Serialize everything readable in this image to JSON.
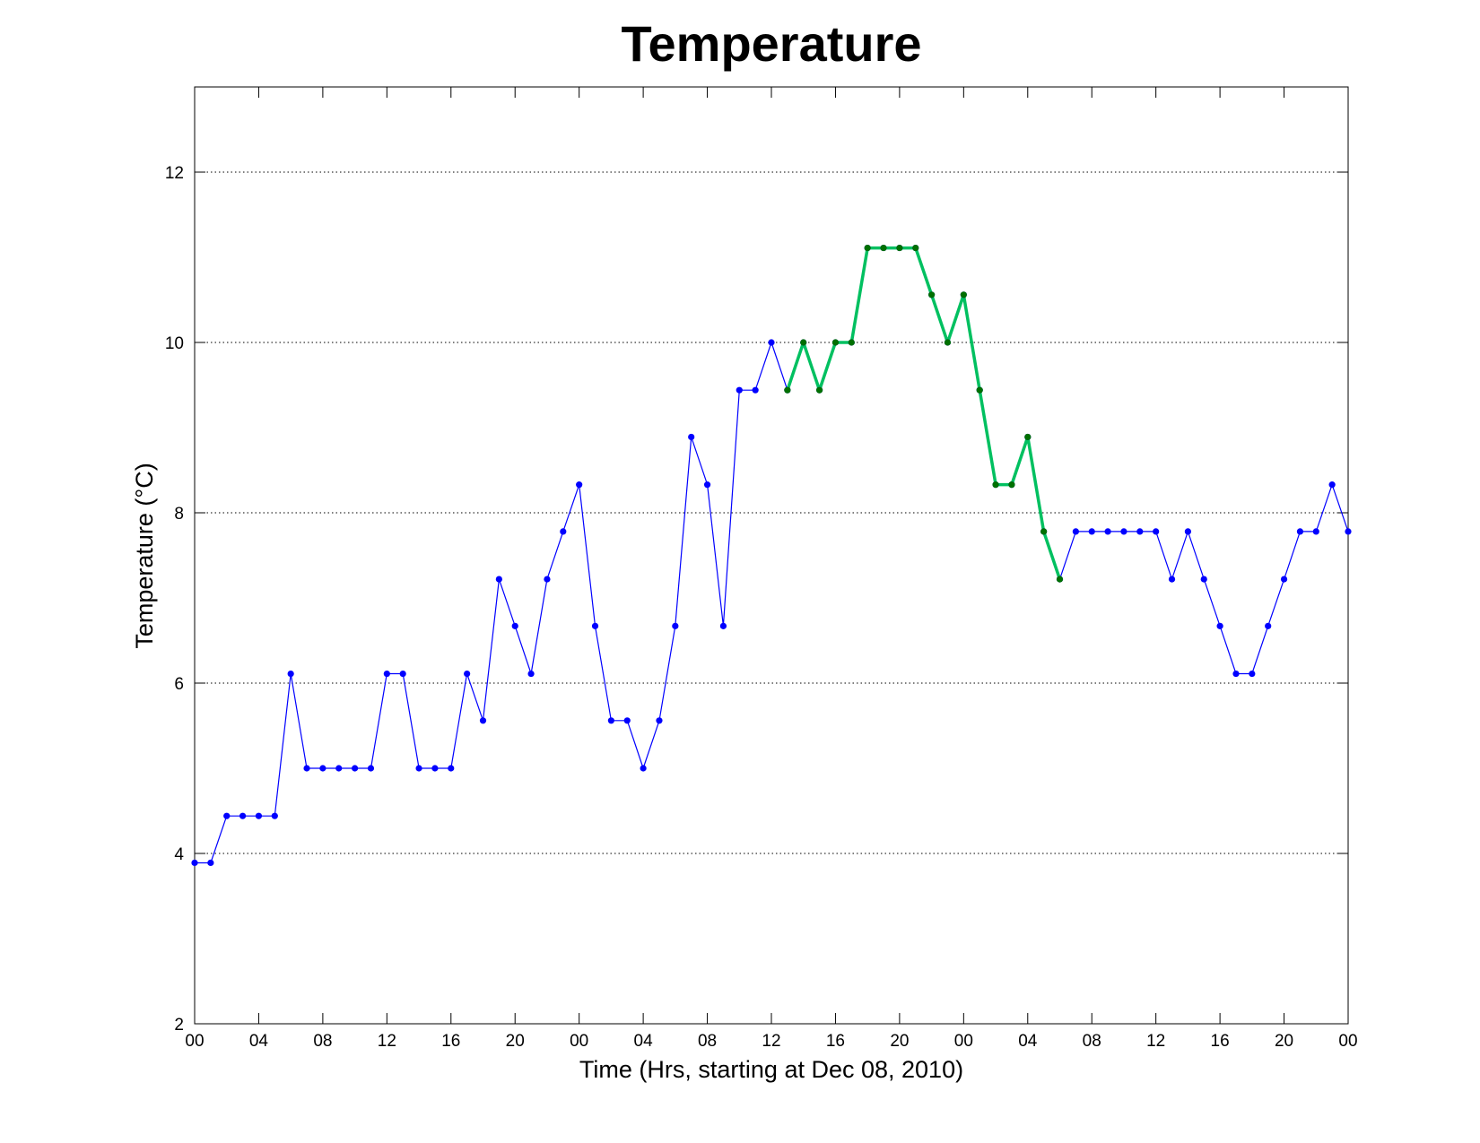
{
  "chart_data": {
    "type": "line",
    "title": "Temperature",
    "xlabel": "Time (Hrs, starting at Dec 08, 2010)",
    "ylabel": "Temperature (°C)",
    "xlim": [
      0,
      72
    ],
    "ylim": [
      2,
      13
    ],
    "grid": "horizontal dotted",
    "y_ticks": [
      2,
      4,
      6,
      8,
      10,
      12
    ],
    "x_ticks": [
      {
        "hour": 0,
        "label": "00"
      },
      {
        "hour": 4,
        "label": "04"
      },
      {
        "hour": 8,
        "label": "08"
      },
      {
        "hour": 12,
        "label": "12"
      },
      {
        "hour": 16,
        "label": "16"
      },
      {
        "hour": 20,
        "label": "20"
      },
      {
        "hour": 24,
        "label": "00"
      },
      {
        "hour": 28,
        "label": "04"
      },
      {
        "hour": 32,
        "label": "08"
      },
      {
        "hour": 36,
        "label": "12"
      },
      {
        "hour": 40,
        "label": "16"
      },
      {
        "hour": 44,
        "label": "20"
      },
      {
        "hour": 48,
        "label": "00"
      },
      {
        "hour": 52,
        "label": "04"
      },
      {
        "hour": 56,
        "label": "08"
      },
      {
        "hour": 60,
        "label": "12"
      },
      {
        "hour": 64,
        "label": "16"
      },
      {
        "hour": 68,
        "label": "20"
      },
      {
        "hour": 72,
        "label": "00"
      }
    ],
    "series": [
      {
        "color": "#0000ff",
        "marker_color": "#0000ff",
        "line_style": "thin",
        "x": [
          0,
          1,
          2,
          3,
          4,
          5,
          6,
          7,
          8,
          9,
          10,
          11,
          12,
          13,
          14,
          15,
          16,
          17,
          18,
          19,
          20,
          21,
          22,
          23,
          24,
          25,
          26,
          27,
          28,
          29,
          30,
          31,
          32,
          33,
          34,
          35,
          36,
          37,
          38,
          39,
          40,
          41,
          42,
          43,
          44,
          45,
          46,
          47,
          48,
          49,
          50,
          51,
          52,
          53,
          54,
          55,
          56,
          57,
          58,
          59,
          60,
          61,
          62,
          63,
          64,
          65,
          66,
          67,
          68,
          69,
          70,
          71,
          72
        ],
        "values": [
          3.89,
          3.89,
          4.44,
          4.44,
          4.44,
          4.44,
          6.11,
          5.0,
          5.0,
          5.0,
          5.0,
          5.0,
          6.11,
          6.11,
          5.0,
          5.0,
          5.0,
          6.11,
          5.56,
          7.22,
          6.67,
          6.11,
          7.22,
          7.78,
          8.33,
          6.67,
          5.56,
          5.56,
          5.0,
          5.56,
          6.67,
          8.89,
          8.33,
          6.67,
          9.44,
          9.44,
          10.0,
          9.44,
          10.0,
          9.44,
          10.0,
          10.0,
          11.11,
          11.11,
          11.11,
          11.11,
          10.56,
          10.0,
          10.56,
          9.44,
          8.33,
          8.33,
          8.89,
          7.78,
          7.22,
          7.78,
          7.78,
          7.78,
          7.78,
          7.78,
          7.78,
          7.22,
          7.78,
          7.22,
          6.67,
          6.11,
          6.11,
          6.67,
          7.22,
          7.78,
          7.78,
          8.33,
          7.78
        ]
      },
      {
        "color": "#00c060",
        "marker_color": "#007000",
        "line_style": "thick",
        "x": [
          37,
          38,
          39,
          40,
          41,
          42,
          43,
          44,
          45,
          46,
          47,
          48,
          49,
          50,
          51,
          52,
          53,
          54
        ],
        "values": [
          9.44,
          10.0,
          9.44,
          10.0,
          10.0,
          11.11,
          11.11,
          11.11,
          11.11,
          10.56,
          10.0,
          10.56,
          9.44,
          8.33,
          8.33,
          8.89,
          7.78,
          7.22
        ]
      }
    ]
  }
}
